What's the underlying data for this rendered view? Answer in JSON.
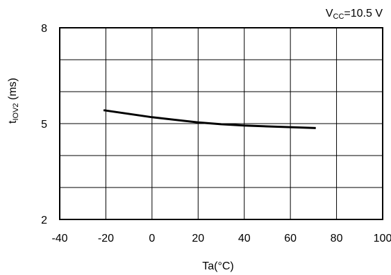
{
  "chart_data": {
    "type": "line",
    "annotation": {
      "main": "V",
      "sub": "CC",
      "rest": "=10.5 V"
    },
    "xlabel": "Ta(°C)",
    "ylabel": {
      "main": "t",
      "sub": "IOV2",
      "rest": " (ms)"
    },
    "xlim": [
      -40,
      100
    ],
    "ylim": [
      2,
      8
    ],
    "xticks": [
      "-40",
      "-20",
      "0",
      "20",
      "40",
      "60",
      "80",
      "100"
    ],
    "yticks": [
      {
        "value": 8,
        "label": "8"
      },
      {
        "value": 5,
        "label": "5"
      },
      {
        "value": 2,
        "label": "2"
      }
    ],
    "grid": true,
    "series": [
      {
        "x": [
          -21,
          0,
          20,
          30,
          40,
          60,
          71
        ],
        "y": [
          5.42,
          5.2,
          5.04,
          4.98,
          4.94,
          4.89,
          4.86
        ]
      }
    ]
  }
}
